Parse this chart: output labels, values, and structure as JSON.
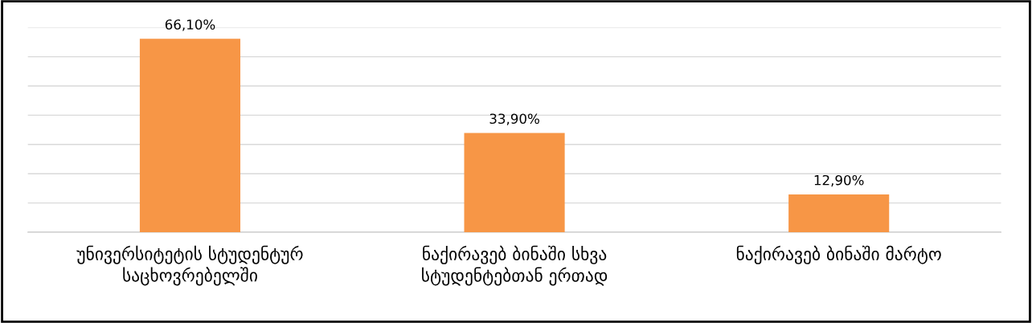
{
  "chart_data": {
    "type": "bar",
    "categories": [
      "უნივერსიტეტის სტუდენტურ\nსაცხოვრებელში",
      "ნაქირავებ ბინაში სხვა\nსტუდენტებთან ერთად",
      "ნაქირავებ ბინაში მარტო"
    ],
    "values": [
      66.1,
      33.9,
      12.9
    ],
    "value_labels": [
      "66,10%",
      "33,90%",
      "12,90%"
    ],
    "color": "#f79646",
    "ylim": [
      0,
      70
    ],
    "yticks": [
      {
        "value": 0,
        "label": null
      },
      {
        "value": 10,
        "label": null
      },
      {
        "value": 20,
        "label": null
      },
      {
        "value": 30,
        "label": null
      },
      {
        "value": 40,
        "label": null
      },
      {
        "value": 50,
        "label": null
      },
      {
        "value": 60,
        "label": null
      },
      {
        "value": 70,
        "label": null
      }
    ],
    "grid": "y",
    "tick_labels": "x"
  }
}
